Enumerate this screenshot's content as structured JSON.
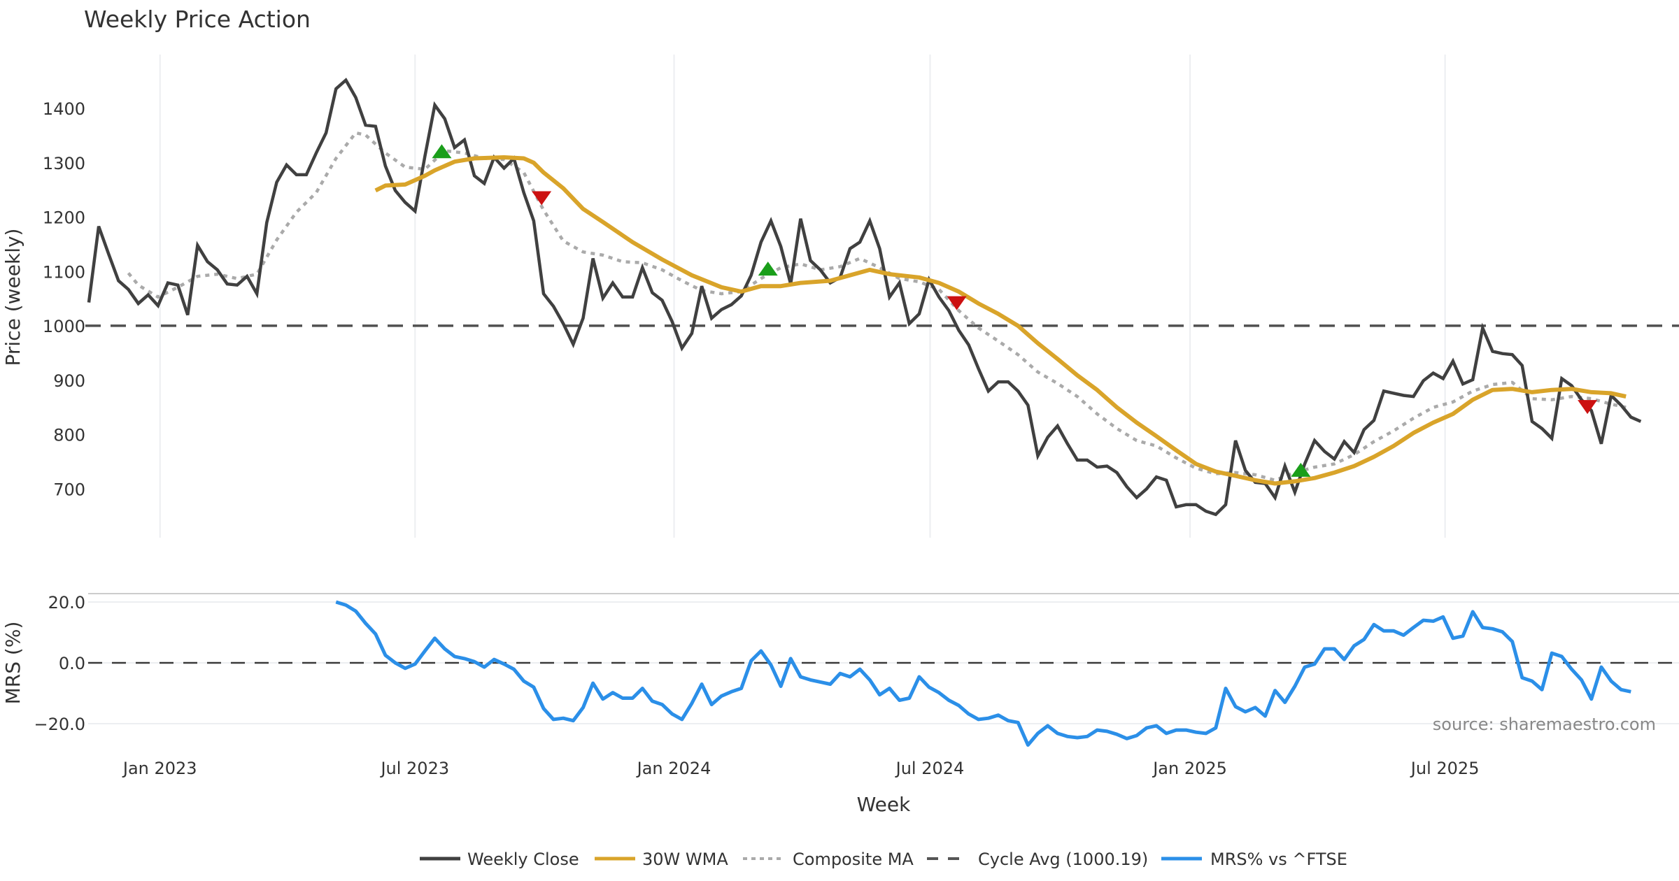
{
  "chart_data": [
    {
      "type": "line",
      "title": "Weekly Price Action",
      "xlabel": "Week",
      "ylabel": "Price (weekly)",
      "x_unit": "week_index",
      "x_ticks": [
        {
          "label": "Jan 2023",
          "week": 7.2
        },
        {
          "label": "Jul 2023",
          "week": 33.0
        },
        {
          "label": "Jan 2024",
          "week": 59.2
        },
        {
          "label": "Jul 2024",
          "week": 85.1
        },
        {
          "label": "Jan 2025",
          "week": 111.4
        },
        {
          "label": "Jul 2025",
          "week": 137.2
        }
      ],
      "y_ticks": [
        700,
        800,
        900,
        1000,
        1100,
        1200,
        1300,
        1400
      ],
      "ylim": [
        610,
        1500
      ],
      "grid": true,
      "cycle_avg": 1000.19,
      "series": [
        {
          "name": "Weekly Close",
          "color": "#404040",
          "start_week": 0,
          "values": [
            1043,
            1183,
            1132,
            1083,
            1067,
            1041,
            1057,
            1037,
            1079,
            1075,
            1020,
            1148,
            1118,
            1103,
            1077,
            1075,
            1091,
            1059,
            1190,
            1264,
            1296,
            1278,
            1278,
            1318,
            1355,
            1436,
            1452,
            1420,
            1369,
            1367,
            1294,
            1249,
            1227,
            1211,
            1312,
            1406,
            1381,
            1328,
            1342,
            1276,
            1262,
            1310,
            1290,
            1308,
            1245,
            1193,
            1059,
            1036,
            1004,
            966,
            1014,
            1124,
            1051,
            1079,
            1053,
            1053,
            1107,
            1061,
            1047,
            1008,
            959,
            986,
            1073,
            1014,
            1030,
            1039,
            1055,
            1093,
            1154,
            1193,
            1146,
            1077,
            1197,
            1120,
            1103,
            1079,
            1089,
            1142,
            1154,
            1193,
            1142,
            1053,
            1079,
            1004,
            1022,
            1085,
            1053,
            1028,
            992,
            965,
            921,
            880,
            897,
            897,
            880,
            854,
            761,
            795,
            816,
            783,
            753,
            753,
            740,
            742,
            730,
            704,
            684,
            700,
            722,
            716,
            667,
            671,
            671,
            659,
            653,
            671,
            789,
            734,
            712,
            710,
            684,
            742,
            694,
            746,
            789,
            769,
            755,
            787,
            767,
            809,
            826,
            880,
            876,
            872,
            870,
            899,
            913,
            903,
            935,
            893,
            901,
            996,
            953,
            949,
            947,
            927,
            824,
            811,
            793,
            903,
            890,
            864,
            844,
            783,
            872,
            854,
            832,
            824
          ]
        },
        {
          "name": "30W WMA",
          "color": "#D9A42A",
          "points": [
            [
              29,
              1249
            ],
            [
              30,
              1258
            ],
            [
              32,
              1260
            ],
            [
              34,
              1276
            ],
            [
              35,
              1286
            ],
            [
              37,
              1302
            ],
            [
              39,
              1308
            ],
            [
              42,
              1310
            ],
            [
              44,
              1308
            ],
            [
              45,
              1300
            ],
            [
              46,
              1282
            ],
            [
              48,
              1253
            ],
            [
              50,
              1215
            ],
            [
              52,
              1191
            ],
            [
              55,
              1154
            ],
            [
              58,
              1122
            ],
            [
              61,
              1093
            ],
            [
              64,
              1071
            ],
            [
              66,
              1063
            ],
            [
              68,
              1073
            ],
            [
              70,
              1073
            ],
            [
              72,
              1079
            ],
            [
              75,
              1083
            ],
            [
              77,
              1093
            ],
            [
              79,
              1103
            ],
            [
              81,
              1095
            ],
            [
              84,
              1089
            ],
            [
              86,
              1079
            ],
            [
              88,
              1063
            ],
            [
              90,
              1041
            ],
            [
              92,
              1022
            ],
            [
              94,
              1000
            ],
            [
              96,
              968
            ],
            [
              98,
              939
            ],
            [
              100,
              909
            ],
            [
              102,
              882
            ],
            [
              104,
              850
            ],
            [
              106,
              822
            ],
            [
              108,
              797
            ],
            [
              110,
              771
            ],
            [
              112,
              746
            ],
            [
              114,
              732
            ],
            [
              116,
              724
            ],
            [
              118,
              716
            ],
            [
              120,
              710
            ],
            [
              122,
              714
            ],
            [
              124,
              720
            ],
            [
              126,
              730
            ],
            [
              128,
              742
            ],
            [
              130,
              759
            ],
            [
              132,
              779
            ],
            [
              134,
              803
            ],
            [
              136,
              822
            ],
            [
              138,
              838
            ],
            [
              140,
              864
            ],
            [
              142,
              882
            ],
            [
              144,
              884
            ],
            [
              146,
              878
            ],
            [
              148,
              882
            ],
            [
              150,
              884
            ],
            [
              152,
              878
            ],
            [
              154,
              876
            ],
            [
              155.5,
              870
            ]
          ]
        },
        {
          "name": "Composite MA",
          "color": "#AAAAAA",
          "points": [
            [
              4,
              1097
            ],
            [
              5,
              1075
            ],
            [
              7,
              1053
            ],
            [
              9,
              1071
            ],
            [
              11,
              1091
            ],
            [
              13,
              1095
            ],
            [
              15,
              1087
            ],
            [
              17,
              1095
            ],
            [
              19,
              1158
            ],
            [
              21,
              1209
            ],
            [
              23,
              1245
            ],
            [
              25,
              1308
            ],
            [
              27,
              1355
            ],
            [
              28,
              1351
            ],
            [
              30,
              1318
            ],
            [
              32,
              1292
            ],
            [
              34,
              1288
            ],
            [
              36,
              1322
            ],
            [
              38,
              1318
            ],
            [
              40,
              1308
            ],
            [
              42,
              1306
            ],
            [
              44,
              1282
            ],
            [
              46,
              1213
            ],
            [
              48,
              1156
            ],
            [
              50,
              1136
            ],
            [
              52,
              1130
            ],
            [
              54,
              1118
            ],
            [
              56,
              1116
            ],
            [
              58,
              1103
            ],
            [
              60,
              1083
            ],
            [
              62,
              1065
            ],
            [
              64,
              1059
            ],
            [
              66,
              1063
            ],
            [
              68,
              1087
            ],
            [
              70,
              1107
            ],
            [
              72,
              1114
            ],
            [
              74,
              1103
            ],
            [
              76,
              1109
            ],
            [
              78,
              1124
            ],
            [
              80,
              1107
            ],
            [
              82,
              1087
            ],
            [
              84,
              1081
            ],
            [
              86,
              1067
            ],
            [
              88,
              1028
            ],
            [
              90,
              996
            ],
            [
              92,
              972
            ],
            [
              94,
              947
            ],
            [
              96,
              915
            ],
            [
              98,
              894
            ],
            [
              100,
              870
            ],
            [
              102,
              838
            ],
            [
              104,
              811
            ],
            [
              106,
              789
            ],
            [
              108,
              779
            ],
            [
              110,
              757
            ],
            [
              112,
              738
            ],
            [
              114,
              728
            ],
            [
              116,
              730
            ],
            [
              118,
              726
            ],
            [
              120,
              716
            ],
            [
              122,
              730
            ],
            [
              124,
              740
            ],
            [
              126,
              746
            ],
            [
              128,
              763
            ],
            [
              130,
              787
            ],
            [
              132,
              807
            ],
            [
              134,
              830
            ],
            [
              136,
              850
            ],
            [
              138,
              860
            ],
            [
              140,
              880
            ],
            [
              142,
              892
            ],
            [
              144,
              896
            ],
            [
              146,
              866
            ],
            [
              148,
              864
            ],
            [
              150,
              870
            ],
            [
              152,
              866
            ],
            [
              154,
              856
            ],
            [
              155.5,
              850
            ]
          ]
        }
      ],
      "signals": [
        {
          "type": "buy",
          "week": 35.7,
          "value": 1320,
          "color": "#1A9E1A"
        },
        {
          "type": "sell",
          "week": 45.8,
          "value": 1236,
          "color": "#CC1111"
        },
        {
          "type": "buy",
          "week": 68.7,
          "value": 1104,
          "color": "#1A9E1A"
        },
        {
          "type": "sell",
          "week": 87.8,
          "value": 1043,
          "color": "#CC1111"
        },
        {
          "type": "buy",
          "week": 122.6,
          "value": 734,
          "color": "#1A9E1A"
        },
        {
          "type": "sell",
          "week": 151.6,
          "value": 852,
          "color": "#CC1111"
        }
      ]
    },
    {
      "type": "line",
      "ylabel": "MRS (%)",
      "y_ticks": [
        {
          "value": 20,
          "label": "20.0"
        },
        {
          "value": 0,
          "label": "0.0"
        },
        {
          "value": -20,
          "label": "−20.0"
        }
      ],
      "ylim": [
        -30,
        25
      ],
      "series": [
        {
          "name": "MRS% vs ^FTSE",
          "color": "#2B8FE8",
          "start_week": 25,
          "values": [
            20,
            19,
            17,
            13,
            9.5,
            2.5,
            0,
            -1.8,
            -0.4,
            3.9,
            8.1,
            4.6,
            2.1,
            1.4,
            0.4,
            -1.4,
            1.1,
            -0.4,
            -2.1,
            -6,
            -8,
            -15,
            -18.6,
            -18.2,
            -19,
            -14.7,
            -6.7,
            -11.9,
            -9.8,
            -11.6,
            -11.6,
            -8.4,
            -12.6,
            -13.7,
            -16.8,
            -18.6,
            -13.3,
            -7,
            -13.7,
            -10.9,
            -9.5,
            -8.4,
            0.7,
            3.9,
            -0.7,
            -7.7,
            1.4,
            -4.6,
            -5.6,
            -6.3,
            -7,
            -3.5,
            -4.6,
            -2.1,
            -5.6,
            -10.5,
            -8.4,
            -12.3,
            -11.6,
            -4.6,
            -8,
            -9.8,
            -12.3,
            -14,
            -16.8,
            -18.6,
            -18.2,
            -17.2,
            -19,
            -19.6,
            -27,
            -23.2,
            -20.7,
            -23.2,
            -24.2,
            -24.6,
            -24.2,
            -22.1,
            -22.5,
            -23.5,
            -24.9,
            -23.9,
            -21.4,
            -20.7,
            -23.2,
            -22.1,
            -22.1,
            -22.8,
            -23.2,
            -21.4,
            -8.4,
            -14.4,
            -16.1,
            -14.7,
            -17.5,
            -9.1,
            -13,
            -7.7,
            -1.4,
            -0.4,
            4.6,
            4.6,
            1.1,
            5.6,
            7.7,
            12.6,
            10.5,
            10.5,
            9.1,
            11.6,
            14,
            13.7,
            15.1,
            8.1,
            8.8,
            16.8,
            11.6,
            11.2,
            10.2,
            7,
            -4.9,
            -6,
            -8.8,
            3.2,
            2.1,
            -2.1,
            -5.6,
            -11.9,
            -1.4,
            -6,
            -8.8,
            -9.5
          ]
        }
      ],
      "reference_line": 0
    }
  ],
  "legend": {
    "position": "bottom-center",
    "items": [
      {
        "label": "Weekly Close",
        "style": "solid",
        "color": "#404040"
      },
      {
        "label": "30W WMA",
        "style": "solid",
        "color": "#D9A42A"
      },
      {
        "label": "Composite MA",
        "style": "dotted",
        "color": "#AAAAAA"
      },
      {
        "label": "Cycle Avg (1000.19)",
        "style": "dashed",
        "color": "#555555"
      },
      {
        "label": "MRS% vs ^FTSE",
        "style": "solid",
        "color": "#2B8FE8"
      }
    ]
  },
  "source": "source: sharemaestro.com"
}
